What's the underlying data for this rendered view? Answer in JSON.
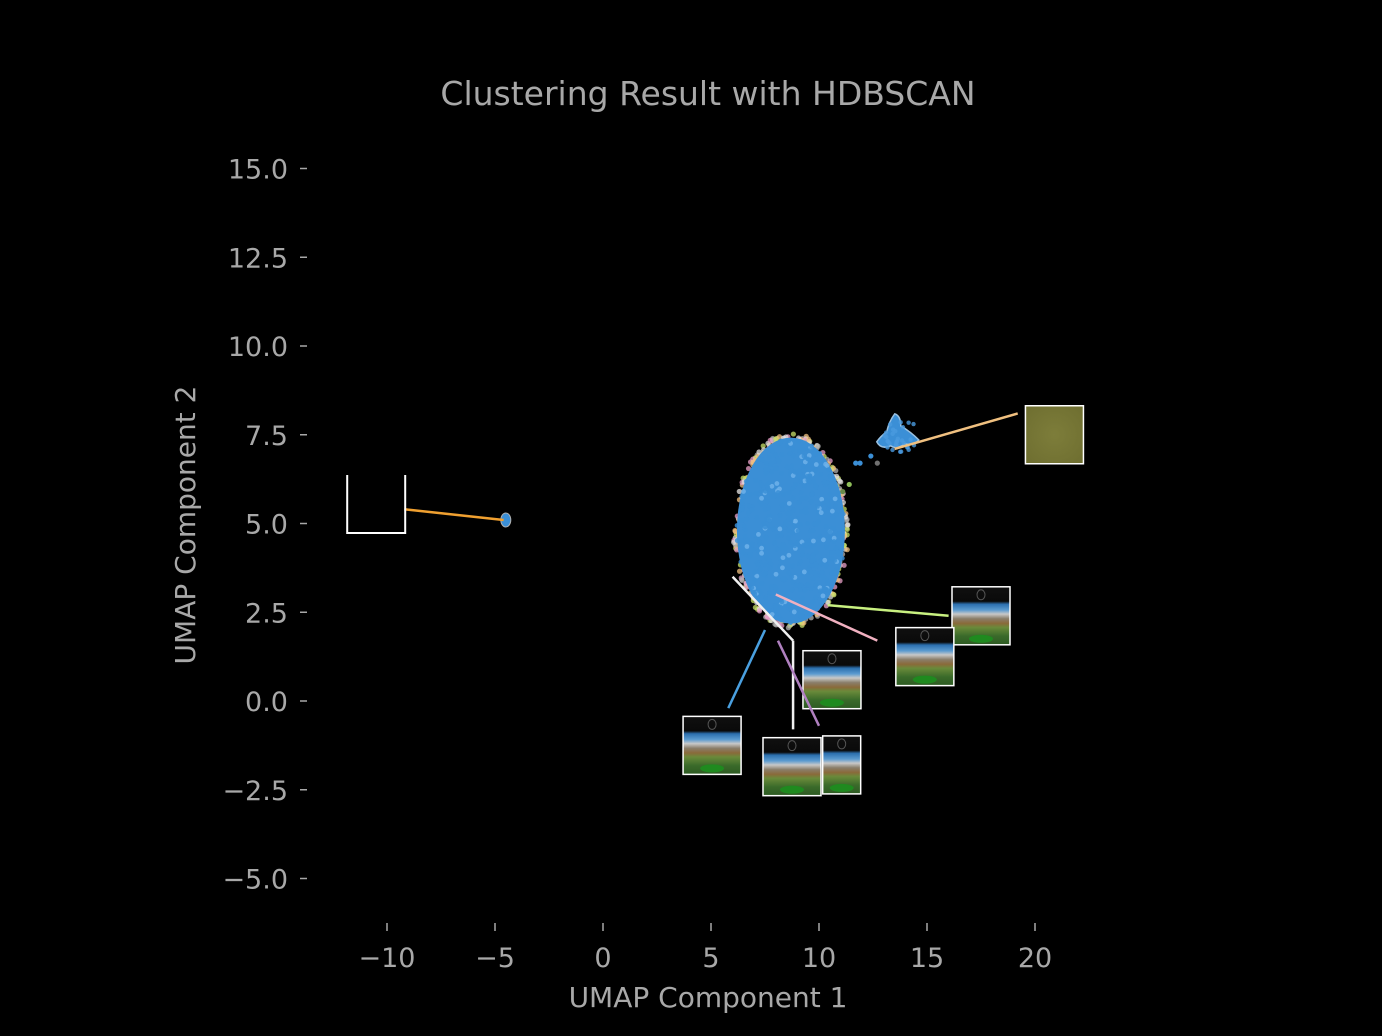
{
  "chart_data": {
    "type": "scatter",
    "title": "Clustering Result with HDBSCAN",
    "xlabel": "UMAP Component 1",
    "ylabel": "UMAP Component 2",
    "xlim": [
      -12.5,
      22.5
    ],
    "ylim": [
      -6.2,
      16.5
    ],
    "x_ticks": [
      -10,
      -5,
      0,
      5,
      10,
      15,
      20
    ],
    "x_tick_labels": [
      "−10",
      "−5",
      "0",
      "5",
      "10",
      "15",
      "20"
    ],
    "y_ticks": [
      15.0,
      12.5,
      10.0,
      7.5,
      5.0,
      2.5,
      0.0,
      -2.5,
      -5.0
    ],
    "y_tick_labels": [
      "15.0",
      "12.5",
      "10.0",
      "7.5",
      "5.0",
      "2.5",
      "0.0",
      "−2.5",
      "−5.0"
    ],
    "grid": false,
    "background": "#000000",
    "point_color": "#3b8fd6",
    "clusters": [
      {
        "center": [
          8.7,
          4.8
        ],
        "spread": [
          2.5,
          5.2
        ],
        "shape": "ellipse",
        "color": "#3b8fd6"
      },
      {
        "center": [
          13.6,
          7.3
        ],
        "spread": [
          0.9,
          0.7
        ],
        "shape": "blob",
        "color": "#3b8fd6"
      },
      {
        "center": [
          -4.5,
          5.1
        ],
        "spread": [
          0.15,
          0.2
        ],
        "shape": "blob",
        "color": "#3b8fd6"
      }
    ],
    "edge_colors": [
      "#e8a0c8",
      "#c8e06a",
      "#f0c080",
      "#b0b0b0",
      "#e0e0e0"
    ],
    "stray_points": [
      {
        "x": 11.4,
        "y": 6.1,
        "color": "#8fbf5a"
      },
      {
        "x": 11.1,
        "y": 5.9,
        "color": "#6a8a4a"
      },
      {
        "x": 11.7,
        "y": 6.7,
        "color": "#3b8fd6"
      },
      {
        "x": 11.9,
        "y": 6.7,
        "color": "#3b8fd6"
      },
      {
        "x": 12.7,
        "y": 6.7,
        "color": "#707070"
      },
      {
        "x": 12.4,
        "y": 6.9,
        "color": "#3b8fd6"
      }
    ],
    "annotations": [
      {
        "from": [
          -9.2,
          5.4
        ],
        "to": [
          -4.6,
          5.1
        ],
        "color": "#f0a030",
        "thumb_center": [
          -10.5,
          5.55
        ],
        "thumb_kind": "blank"
      },
      {
        "from": [
          19.2,
          8.1
        ],
        "to": [
          13.5,
          7.1
        ],
        "color": "#f0c080",
        "thumb_center": [
          20.9,
          7.5
        ],
        "thumb_kind": "olive"
      },
      {
        "from": [
          16.0,
          2.4
        ],
        "to": [
          10.4,
          2.7
        ],
        "color": "#c8f080",
        "thumb_center": [
          17.5,
          2.4
        ],
        "thumb_kind": "landscape"
      },
      {
        "from": [
          12.7,
          1.7
        ],
        "to": [
          8.0,
          3.0
        ],
        "color": "#f0b0c0",
        "thumb_center": [
          14.9,
          1.25
        ],
        "thumb_kind": "landscape"
      },
      {
        "from": [
          8.8,
          1.7
        ],
        "to": [
          6.0,
          3.5
        ],
        "color": "#f0f0f0",
        "thumb_center": [
          10.6,
          0.6
        ],
        "thumb_kind": "landscape"
      },
      {
        "from": [
          8.8,
          1.7
        ],
        "to": [
          8.8,
          -0.8
        ],
        "color": "#f0f0f0",
        "thumb_center": null,
        "thumb_kind": null
      },
      {
        "from": [
          7.5,
          2.0
        ],
        "to": [
          5.8,
          -0.2
        ],
        "color": "#4aa0e0",
        "thumb_center": [
          5.05,
          -1.25
        ],
        "thumb_kind": "landscape"
      },
      {
        "from": [
          8.1,
          1.7
        ],
        "to": [
          10.0,
          -0.7
        ],
        "color": "#b080c0",
        "thumb_center": [
          11.05,
          -1.8
        ],
        "thumb_kind": "landscape-narrow"
      },
      {
        "from": null,
        "to": null,
        "color": "#ffffff",
        "thumb_center": [
          8.75,
          -1.85
        ],
        "thumb_kind": "landscape"
      }
    ]
  }
}
